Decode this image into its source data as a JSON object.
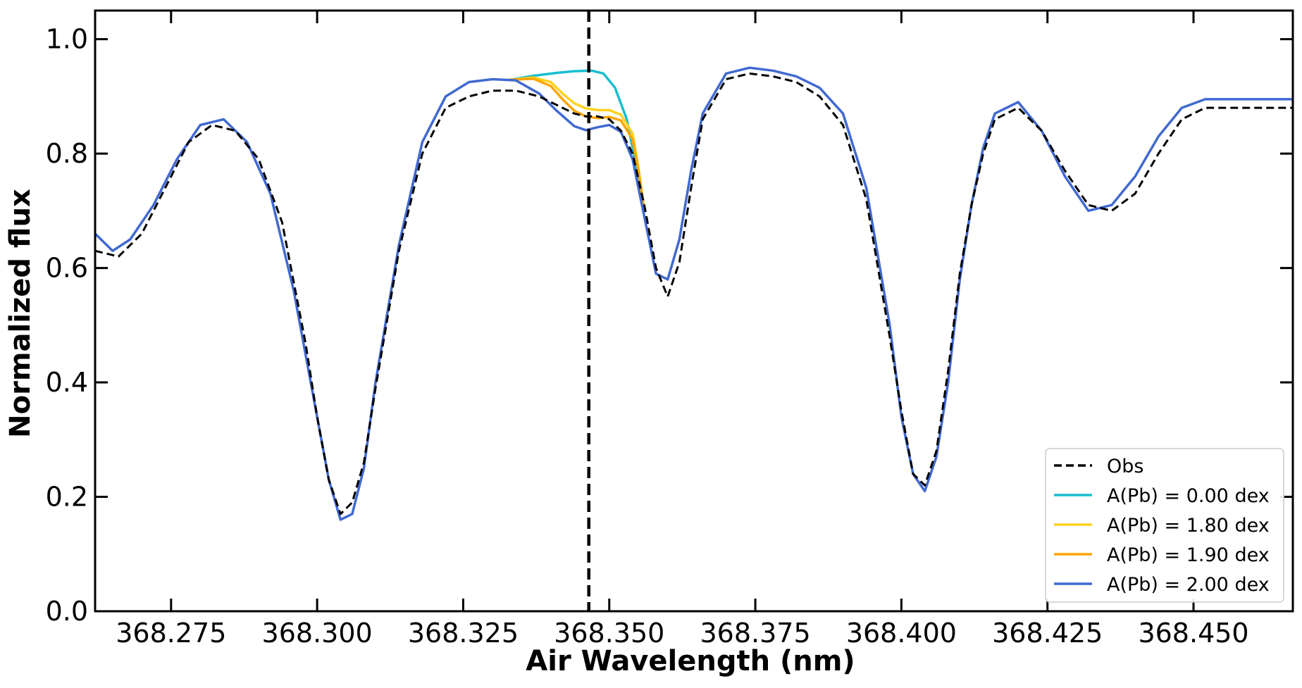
{
  "chart_data": {
    "type": "line",
    "title": "",
    "xlabel": "Air Wavelength (nm)",
    "ylabel": "Normalized flux",
    "xlim": [
      368.262,
      368.467
    ],
    "ylim": [
      0.0,
      1.05
    ],
    "xticks": [
      368.275,
      368.3,
      368.325,
      368.35,
      368.375,
      368.4,
      368.425,
      368.45
    ],
    "xtick_labels": [
      "368.275",
      "368.300",
      "368.325",
      "368.350",
      "368.375",
      "368.400",
      "368.425",
      "368.450"
    ],
    "yticks": [
      0.0,
      0.2,
      0.4,
      0.6,
      0.8,
      1.0
    ],
    "ytick_labels": [
      "0.0",
      "0.2",
      "0.4",
      "0.6",
      "0.8",
      "1.0"
    ],
    "vline_x": 368.3465,
    "legend_position": "lower-right",
    "grid": false,
    "series": [
      {
        "name": "Obs",
        "color": "#000000",
        "style": "dashed",
        "x": [
          368.262,
          368.266,
          368.27,
          368.274,
          368.278,
          368.282,
          368.286,
          368.29,
          368.294,
          368.298,
          368.3,
          368.302,
          368.304,
          368.306,
          368.308,
          368.31,
          368.314,
          368.318,
          368.322,
          368.326,
          368.33,
          368.334,
          368.338,
          368.342,
          368.344,
          368.346,
          368.348,
          368.35,
          368.352,
          368.354,
          368.356,
          368.358,
          368.36,
          368.362,
          368.364,
          368.366,
          368.37,
          368.374,
          368.378,
          368.382,
          368.386,
          368.39,
          368.394,
          368.398,
          368.4,
          368.402,
          368.404,
          368.406,
          368.408,
          368.41,
          368.412,
          368.414,
          368.416,
          368.42,
          368.424,
          368.428,
          368.432,
          368.436,
          368.44,
          368.444,
          368.448,
          368.452,
          368.456,
          368.46,
          368.464,
          368.467
        ],
        "y": [
          0.63,
          0.62,
          0.66,
          0.74,
          0.82,
          0.85,
          0.84,
          0.79,
          0.68,
          0.47,
          0.34,
          0.23,
          0.17,
          0.19,
          0.26,
          0.39,
          0.63,
          0.8,
          0.88,
          0.9,
          0.91,
          0.91,
          0.9,
          0.88,
          0.87,
          0.865,
          0.865,
          0.86,
          0.84,
          0.8,
          0.71,
          0.6,
          0.55,
          0.61,
          0.74,
          0.86,
          0.93,
          0.94,
          0.935,
          0.925,
          0.9,
          0.85,
          0.72,
          0.48,
          0.35,
          0.24,
          0.22,
          0.28,
          0.42,
          0.59,
          0.71,
          0.8,
          0.86,
          0.88,
          0.84,
          0.77,
          0.71,
          0.7,
          0.73,
          0.8,
          0.86,
          0.88,
          0.88,
          0.88,
          0.88,
          0.88
        ]
      },
      {
        "name": "A(Pb) = 0.00 dex",
        "color": "#17becf",
        "style": "solid",
        "x": [
          368.333,
          368.337,
          368.341,
          368.344,
          368.347,
          368.349,
          368.351,
          368.353,
          368.354,
          368.355,
          368.356
        ],
        "y": [
          0.929,
          0.936,
          0.941,
          0.944,
          0.945,
          0.94,
          0.915,
          0.86,
          0.81,
          0.755,
          0.7
        ]
      },
      {
        "name": "A(Pb) = 1.80 dex",
        "color": "#ffd21f",
        "style": "solid",
        "x": [
          368.333,
          368.337,
          368.34,
          368.342,
          368.344,
          368.346,
          368.348,
          368.35,
          368.352,
          368.354,
          368.355,
          368.356
        ],
        "y": [
          0.929,
          0.933,
          0.925,
          0.905,
          0.888,
          0.879,
          0.876,
          0.876,
          0.868,
          0.835,
          0.775,
          0.7
        ]
      },
      {
        "name": "A(Pb) = 1.90 dex",
        "color": "#ffa500",
        "style": "solid",
        "x": [
          368.333,
          368.337,
          368.34,
          368.342,
          368.344,
          368.346,
          368.348,
          368.35,
          368.352,
          368.354,
          368.355,
          368.356
        ],
        "y": [
          0.929,
          0.931,
          0.918,
          0.895,
          0.875,
          0.865,
          0.862,
          0.864,
          0.858,
          0.825,
          0.77,
          0.7
        ]
      },
      {
        "name": "A(Pb) = 2.00 dex",
        "color": "#4169d1",
        "style": "solid",
        "x": [
          368.262,
          368.265,
          368.268,
          368.272,
          368.276,
          368.28,
          368.284,
          368.288,
          368.292,
          368.296,
          368.3,
          368.302,
          368.304,
          368.306,
          368.308,
          368.31,
          368.314,
          368.318,
          368.322,
          368.326,
          368.33,
          368.334,
          368.338,
          368.341,
          368.344,
          368.346,
          368.348,
          368.35,
          368.352,
          368.354,
          368.356,
          368.358,
          368.36,
          368.362,
          368.364,
          368.366,
          368.37,
          368.374,
          368.378,
          368.382,
          368.386,
          368.39,
          368.394,
          368.398,
          368.4,
          368.402,
          368.404,
          368.406,
          368.408,
          368.41,
          368.412,
          368.414,
          368.416,
          368.42,
          368.424,
          368.428,
          368.432,
          368.436,
          368.44,
          368.444,
          368.448,
          368.452,
          368.456,
          368.46,
          368.464,
          368.467
        ],
        "y": [
          0.66,
          0.63,
          0.65,
          0.71,
          0.79,
          0.85,
          0.86,
          0.82,
          0.73,
          0.56,
          0.34,
          0.23,
          0.16,
          0.17,
          0.25,
          0.4,
          0.64,
          0.82,
          0.9,
          0.925,
          0.93,
          0.928,
          0.905,
          0.875,
          0.848,
          0.841,
          0.846,
          0.85,
          0.838,
          0.79,
          0.69,
          0.59,
          0.58,
          0.65,
          0.77,
          0.87,
          0.94,
          0.95,
          0.945,
          0.935,
          0.915,
          0.87,
          0.74,
          0.5,
          0.34,
          0.24,
          0.21,
          0.27,
          0.4,
          0.58,
          0.71,
          0.81,
          0.87,
          0.89,
          0.84,
          0.76,
          0.7,
          0.71,
          0.76,
          0.83,
          0.88,
          0.895,
          0.895,
          0.895,
          0.895,
          0.895
        ]
      }
    ]
  }
}
